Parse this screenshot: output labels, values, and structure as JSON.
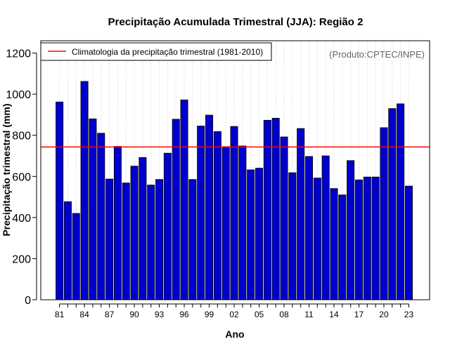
{
  "chart_data": {
    "type": "bar",
    "title": "Precipitação Acumulada Trimestral (JJA): Região 2",
    "xlabel": "Ano",
    "ylabel": "Precipitação trimestral (mm)",
    "credit": "(Produto:CPTEC/INPE)",
    "legend": {
      "position": "top-left",
      "label": "Climatologia da precipitação trimestral (1981-2010)",
      "color": "#ff0000"
    },
    "ylim": [
      0,
      1260
    ],
    "yticks": [
      0,
      200,
      400,
      600,
      800,
      1000,
      1200
    ],
    "grid": "vertical-dotted",
    "categories": [
      "81",
      "82",
      "83",
      "84",
      "85",
      "86",
      "87",
      "88",
      "89",
      "90",
      "91",
      "92",
      "93",
      "94",
      "95",
      "96",
      "97",
      "98",
      "99",
      "00",
      "01",
      "02",
      "03",
      "04",
      "05",
      "06",
      "07",
      "08",
      "09",
      "10",
      "11",
      "12",
      "13",
      "14",
      "15",
      "16",
      "17",
      "18",
      "19",
      "20",
      "21",
      "22",
      "23"
    ],
    "xtick_labels": [
      "81",
      "84",
      "87",
      "90",
      "93",
      "96",
      "99",
      "02",
      "05",
      "08",
      "11",
      "14",
      "17",
      "20",
      "23"
    ],
    "values": [
      962,
      477,
      420,
      1062,
      880,
      810,
      587,
      746,
      568,
      650,
      692,
      558,
      585,
      713,
      878,
      972,
      585,
      845,
      898,
      818,
      745,
      843,
      748,
      632,
      640,
      873,
      883,
      792,
      618,
      833,
      697,
      592,
      700,
      541,
      510,
      677,
      583,
      597,
      597,
      837,
      930,
      953,
      553
    ],
    "climatology": 743,
    "bar_color": "#0000cd",
    "bar_edge": "#000000",
    "line_color": "#ff0000"
  }
}
